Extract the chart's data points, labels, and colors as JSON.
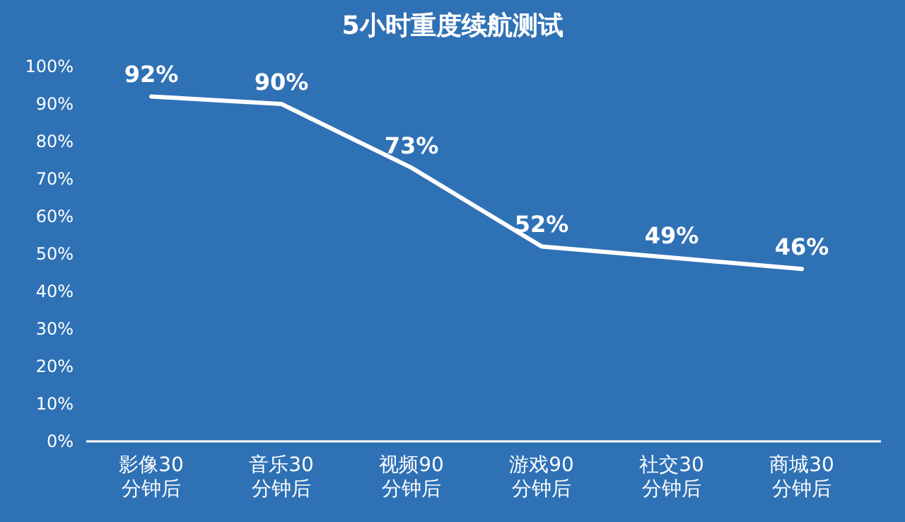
{
  "chart_data": {
    "type": "line",
    "title": "5小时重度续航测试",
    "categories": [
      "影像30分钟后",
      "音乐30分钟后",
      "视频90分钟后",
      "游戏90分钟后",
      "社交30分钟后",
      "商城30分钟后"
    ],
    "values": [
      92,
      90,
      73,
      52,
      49,
      46
    ],
    "value_labels": [
      "92%",
      "90%",
      "73%",
      "52%",
      "49%",
      "46%"
    ],
    "color": "#ffffff",
    "grid": false,
    "marker": "none",
    "ylim": [
      0,
      100
    ],
    "yticks": [
      {
        "value": 0,
        "label": "0%"
      },
      {
        "value": 10,
        "label": "10%"
      },
      {
        "value": 20,
        "label": "20%"
      },
      {
        "value": 30,
        "label": "30%"
      },
      {
        "value": 40,
        "label": "40%"
      },
      {
        "value": 50,
        "label": "50%"
      },
      {
        "value": 60,
        "label": "60%"
      },
      {
        "value": 70,
        "label": "70%"
      },
      {
        "value": 80,
        "label": "80%"
      },
      {
        "value": 90,
        "label": "90%"
      },
      {
        "value": 100,
        "label": "100%"
      }
    ]
  }
}
